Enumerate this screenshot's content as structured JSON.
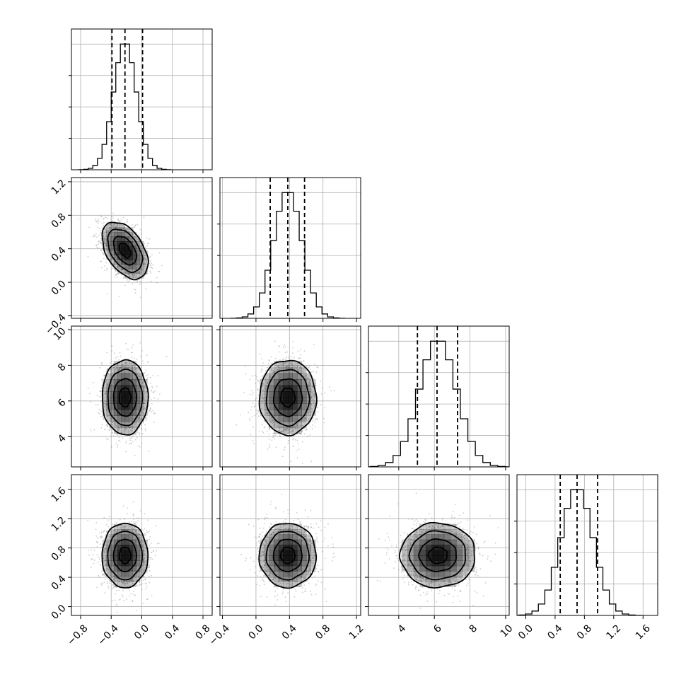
{
  "chart_data": {
    "type": "corner",
    "n_params": 4,
    "parameters": [
      {
        "range": [
          -0.92,
          0.92
        ],
        "ticks": [
          -0.8,
          -0.4,
          0.0,
          0.4,
          0.8
        ],
        "tick_labels": [
          "−0.8",
          "−0.4",
          "0.0",
          "0.4",
          "0.8"
        ],
        "mean": -0.22,
        "std": 0.15,
        "quantiles": [
          -0.39,
          -0.22,
          0.01
        ]
      },
      {
        "range": [
          -0.43,
          1.25
        ],
        "ticks": [
          -0.4,
          0.0,
          0.4,
          0.8,
          1.2
        ],
        "tick_labels": [
          "−0.4",
          "0.0",
          "0.4",
          "0.8",
          "1.2"
        ],
        "mean": 0.38,
        "std": 0.17,
        "quantiles": [
          0.17,
          0.38,
          0.58
        ]
      },
      {
        "range": [
          2.3,
          10.2
        ],
        "ticks": [
          4,
          6,
          8,
          10
        ],
        "tick_labels": [
          "4",
          "6",
          "8",
          "10"
        ],
        "mean": 6.2,
        "std": 1.05,
        "quantiles": [
          5.05,
          6.15,
          7.3
        ]
      },
      {
        "range": [
          -0.12,
          1.8
        ],
        "ticks": [
          0.0,
          0.4,
          0.8,
          1.2,
          1.6
        ],
        "tick_labels": [
          "0.0",
          "0.4",
          "0.8",
          "1.2",
          "1.6"
        ],
        "mean": 0.7,
        "std": 0.22,
        "quantiles": [
          0.47,
          0.7,
          0.98
        ]
      }
    ],
    "correlations": [
      [
        1,
        -0.45,
        0,
        0
      ],
      [
        -0.45,
        1,
        0,
        0
      ],
      [
        0,
        0,
        1,
        0
      ],
      [
        0,
        0,
        0,
        1
      ]
    ],
    "contour_levels_sigma": [
      0.5,
      1.0,
      1.5,
      2.0
    ],
    "quantile_style": "dashed",
    "grid": true,
    "colors": {
      "line": "#000000",
      "grid": "#b0b0b0",
      "density": "#000000",
      "scatter": "#9a9a9a"
    }
  }
}
